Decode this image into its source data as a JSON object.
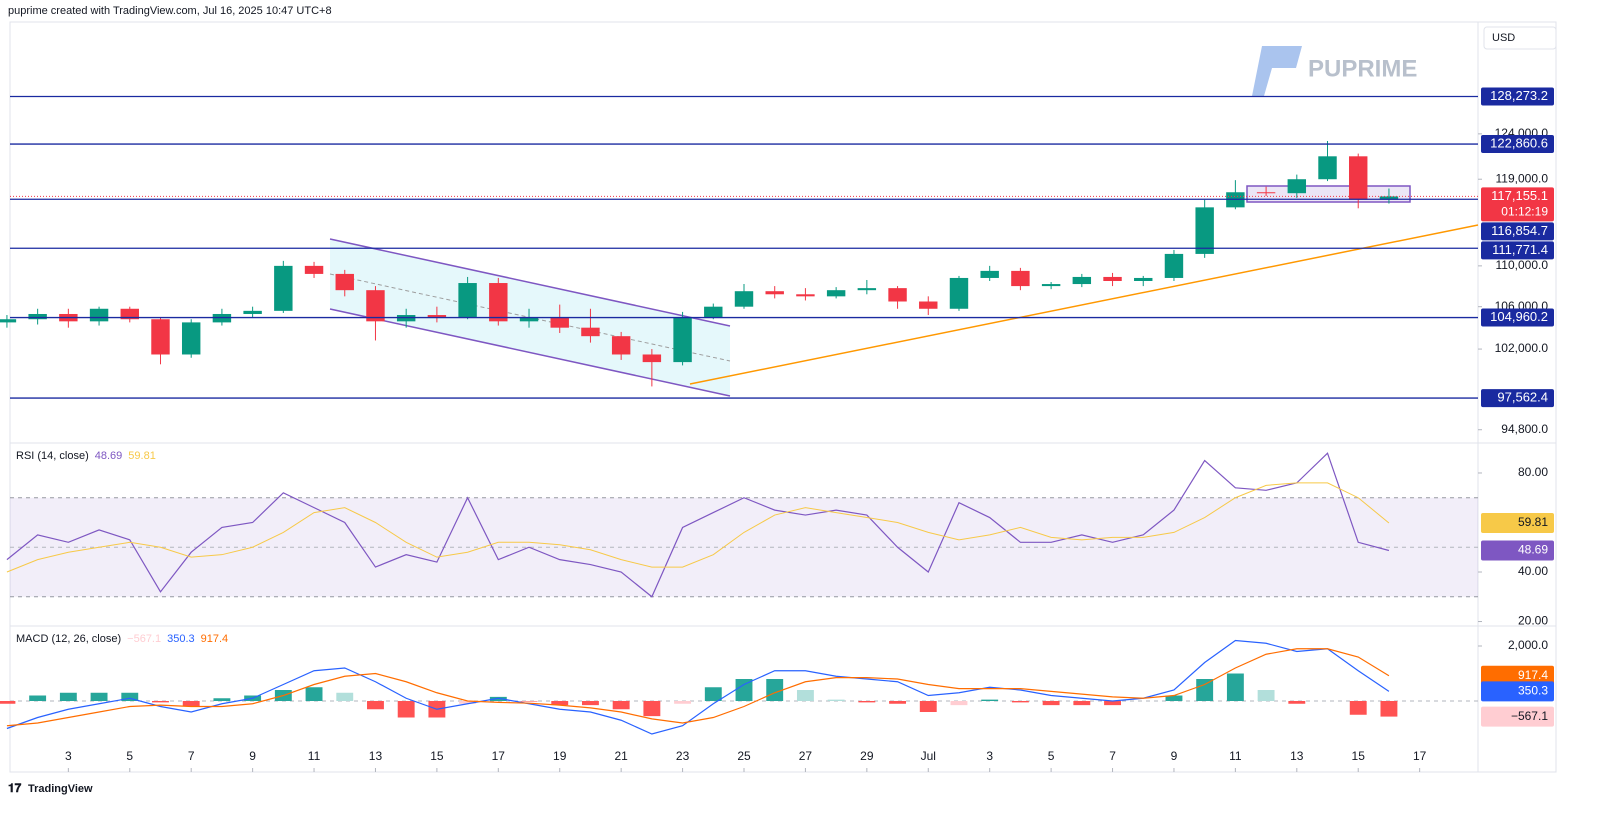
{
  "header": "puprime created with TradingView.com, Jul 16, 2025 10:47 UTC+8",
  "currency": "USD",
  "logo": "PUPRIME",
  "footer": "TradingView",
  "chart_data": [
    {
      "type": "candlestick",
      "log": true,
      "xlim": [
        0.1,
        47.9
      ],
      "ylim": [
        93750,
        137500
      ],
      "yticks": [
        {
          "value": 124000,
          "label": "124,000.0"
        },
        {
          "value": 119000,
          "label": "119,000.0"
        },
        {
          "value": 110000,
          "label": "110,000.0"
        },
        {
          "value": 106000,
          "label": "106,000.0"
        },
        {
          "value": 102000,
          "label": "102,000.0"
        },
        {
          "value": 94800,
          "label": "94,800.0"
        }
      ],
      "levels": [
        {
          "value": 128273.2,
          "label": "128,273.2"
        },
        {
          "value": 122860.6,
          "label": "122,860.6"
        },
        {
          "value": 116854.7,
          "label": "116,854.7"
        },
        {
          "value": 111771.4,
          "label": "111,771.4"
        },
        {
          "value": 104960.2,
          "label": "104,960.2"
        },
        {
          "value": 97562.4,
          "label": "97,562.4"
        }
      ],
      "current_price": {
        "value": 117155.1,
        "label": "117,155.1",
        "countdown": "01:12:19"
      },
      "up_color": "#089981",
      "down_color": "#f23645",
      "x": [
        0,
        1,
        2,
        3,
        4,
        5,
        6,
        7,
        8,
        9,
        10,
        11,
        12,
        13,
        14,
        15,
        16,
        17,
        18,
        19,
        20,
        21,
        22,
        23,
        24,
        25,
        26,
        27,
        28,
        29,
        30,
        31,
        32,
        33,
        34,
        35,
        36,
        37,
        38,
        39,
        40,
        41,
        42,
        43,
        44,
        45
      ],
      "open": [
        104500,
        104800,
        105300,
        104600,
        105800,
        104800,
        101500,
        104500,
        105300,
        105600,
        110000,
        109200,
        107600,
        104600,
        105200,
        105000,
        108300,
        104600,
        105000,
        104000,
        103200,
        101500,
        100800,
        105000,
        106000,
        107500,
        107200,
        107000,
        107600,
        107800,
        106500,
        105800,
        108800,
        109500,
        108000,
        108200,
        108900,
        108500,
        108800,
        111200,
        116000,
        117600,
        117500,
        119000,
        121500,
        116800
      ],
      "high": [
        105200,
        105800,
        105800,
        106000,
        106000,
        105000,
        104800,
        105800,
        106000,
        110500,
        110400,
        109600,
        108000,
        105800,
        106000,
        108900,
        108800,
        105800,
        106200,
        105800,
        103600,
        102000,
        105500,
        106300,
        108200,
        108000,
        107800,
        107900,
        108600,
        108000,
        107000,
        109000,
        110000,
        109800,
        108400,
        109200,
        109300,
        109000,
        111600,
        116800,
        118900,
        118200,
        119500,
        123200,
        121800,
        118000
      ],
      "low": [
        104000,
        104300,
        104000,
        104200,
        104500,
        100600,
        101200,
        104200,
        105000,
        105400,
        108800,
        107000,
        102800,
        104000,
        104500,
        104800,
        104200,
        104000,
        103500,
        102600,
        101000,
        98600,
        100500,
        104800,
        105800,
        106800,
        106600,
        106800,
        107200,
        105800,
        105200,
        105600,
        108500,
        107600,
        107700,
        107900,
        108000,
        108000,
        108500,
        110800,
        115800,
        117200,
        117000,
        118800,
        115900,
        116400
      ],
      "close": [
        104800,
        105300,
        104600,
        105800,
        104800,
        101500,
        104500,
        105300,
        105600,
        110000,
        109200,
        107600,
        104600,
        105200,
        105000,
        108300,
        104600,
        105000,
        104000,
        103200,
        101500,
        100800,
        105000,
        106000,
        107500,
        107200,
        107000,
        107600,
        107800,
        106500,
        105800,
        108800,
        109500,
        108000,
        108200,
        108900,
        108500,
        108800,
        111200,
        116000,
        117600,
        117500,
        119000,
        121500,
        116800,
        117155.1
      ]
    },
    {
      "type": "line",
      "title": "RSI (14, close)",
      "xlim": [
        0.1,
        47.9
      ],
      "ylim": [
        18.6,
        91.3
      ],
      "band": [
        30,
        70
      ],
      "midline": 50,
      "yticks": [
        {
          "value": 80,
          "label": "80.00"
        },
        {
          "value": 40,
          "label": "40.00"
        },
        {
          "value": 20,
          "label": "20.00"
        }
      ],
      "x": [
        0,
        1,
        2,
        3,
        4,
        5,
        6,
        7,
        8,
        9,
        10,
        11,
        12,
        13,
        14,
        15,
        16,
        17,
        18,
        19,
        20,
        21,
        22,
        23,
        24,
        25,
        26,
        27,
        28,
        29,
        30,
        31,
        32,
        33,
        34,
        35,
        36,
        37,
        38,
        39,
        40,
        41,
        42,
        43,
        44,
        45
      ],
      "series": [
        {
          "color": "#7e57c2",
          "values": [
            45,
            55,
            52,
            57,
            53,
            32,
            48,
            58,
            60,
            72,
            66,
            60,
            42,
            47,
            44,
            70,
            45,
            50,
            45,
            43,
            40,
            30,
            58,
            64,
            70,
            65,
            63,
            65,
            63,
            50,
            40,
            68,
            62,
            52,
            52,
            55,
            52,
            55,
            65,
            85,
            74,
            73,
            76,
            88,
            52,
            48.69
          ]
        },
        {
          "color": "#f7c948",
          "values": [
            40,
            45,
            48,
            50,
            52,
            50,
            46,
            47,
            50,
            56,
            64,
            66,
            60,
            52,
            46,
            48,
            52,
            52,
            51,
            49,
            45,
            42,
            42,
            47,
            56,
            63,
            66,
            64,
            62,
            60,
            56,
            53,
            55,
            58,
            54,
            53,
            54,
            54,
            56,
            62,
            70,
            75,
            76,
            76,
            70,
            59.81
          ]
        }
      ]
    },
    {
      "type": "macd",
      "title": "MACD (12, 26, close)",
      "xlim": [
        0.1,
        47.9
      ],
      "ylim": [
        -1600,
        2655
      ],
      "yticks": [
        {
          "value": 2000,
          "label": "2,000.0"
        }
      ],
      "xticks": [
        {
          "value": 2,
          "label": "3"
        },
        {
          "value": 4,
          "label": "5"
        },
        {
          "value": 6,
          "label": "7"
        },
        {
          "value": 8,
          "label": "9"
        },
        {
          "value": 10,
          "label": "11"
        },
        {
          "value": 12,
          "label": "13"
        },
        {
          "value": 14,
          "label": "15"
        },
        {
          "value": 16,
          "label": "17"
        },
        {
          "value": 18,
          "label": "19"
        },
        {
          "value": 20,
          "label": "21"
        },
        {
          "value": 22,
          "label": "23"
        },
        {
          "value": 24,
          "label": "25"
        },
        {
          "value": 26,
          "label": "27"
        },
        {
          "value": 28,
          "label": "29"
        },
        {
          "value": 30,
          "label": "Jul"
        },
        {
          "value": 32,
          "label": "3"
        },
        {
          "value": 34,
          "label": "5"
        },
        {
          "value": 36,
          "label": "7"
        },
        {
          "value": 38,
          "label": "9"
        },
        {
          "value": 40,
          "label": "11"
        },
        {
          "value": 42,
          "label": "13"
        },
        {
          "value": 44,
          "label": "15"
        },
        {
          "value": 46,
          "label": "17"
        }
      ],
      "x": [
        0,
        1,
        2,
        3,
        4,
        5,
        6,
        7,
        8,
        9,
        10,
        11,
        12,
        13,
        14,
        15,
        16,
        17,
        18,
        19,
        20,
        21,
        22,
        23,
        24,
        25,
        26,
        27,
        28,
        29,
        30,
        31,
        32,
        33,
        34,
        35,
        36,
        37,
        38,
        39,
        40,
        41,
        42,
        43,
        44,
        45
      ],
      "series": [
        {
          "values": [
            -100,
            200,
            300,
            300,
            300,
            -50,
            -200,
            100,
            200,
            400,
            500,
            300,
            -300,
            -600,
            -600,
            -100,
            150,
            -20,
            -150,
            -150,
            -300,
            -550,
            -100,
            500,
            800,
            800,
            400,
            50,
            -50,
            -100,
            -400,
            -150,
            50,
            -50,
            -150,
            -150,
            -150,
            0,
            200,
            800,
            1000,
            400,
            -100,
            0,
            -500,
            -567.1
          ],
          "value_labels": [
            null,
            null,
            null,
            null,
            null,
            null,
            null,
            null,
            null,
            null,
            null,
            null,
            null,
            null,
            null,
            null,
            null,
            null,
            null,
            null,
            null,
            null,
            null,
            null,
            null,
            null,
            null,
            null,
            null,
            null,
            null,
            null,
            null,
            null,
            null,
            null,
            null,
            null,
            null,
            null,
            null,
            null,
            null,
            null,
            null,
            "−567.1"
          ]
        },
        {
          "color": "#2962ff",
          "values": [
            -1000,
            -600,
            -300,
            -100,
            100,
            -200,
            -400,
            -100,
            100,
            600,
            1100,
            1200,
            700,
            100,
            -300,
            -100,
            100,
            -100,
            -300,
            -400,
            -700,
            -1200,
            -900,
            -100,
            600,
            1100,
            1100,
            900,
            800,
            700,
            200,
            300,
            500,
            400,
            200,
            100,
            0,
            100,
            400,
            1400,
            2200,
            2100,
            1800,
            1900,
            1100,
            350.3
          ]
        },
        {
          "color": "#ff6d00",
          "values": [
            -900,
            -800,
            -600,
            -400,
            -200,
            -150,
            -200,
            -200,
            -100,
            200,
            600,
            900,
            1000,
            700,
            300,
            0,
            -50,
            -80,
            -150,
            -250,
            -400,
            -650,
            -800,
            -600,
            -200,
            300,
            700,
            850,
            850,
            800,
            600,
            450,
            450,
            450,
            350,
            250,
            150,
            100,
            200,
            600,
            1200,
            1700,
            1900,
            1900,
            1600,
            917.4
          ]
        }
      ]
    }
  ]
}
